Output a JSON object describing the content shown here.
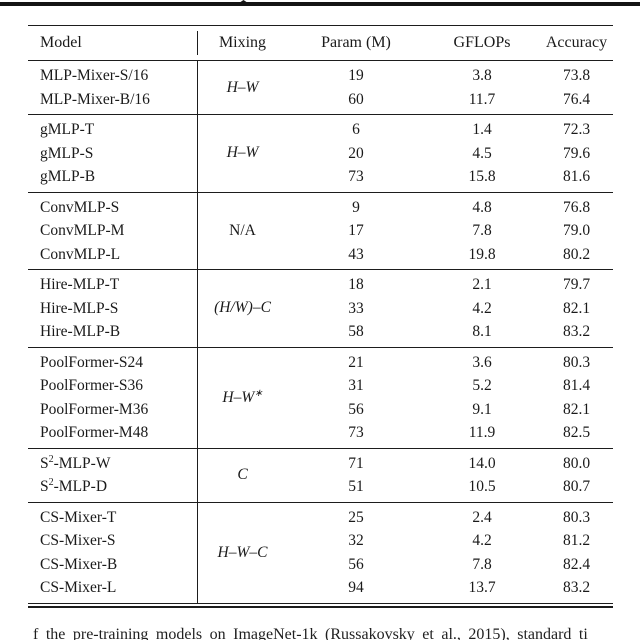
{
  "table": {
    "headers": [
      "Model",
      "Mixing",
      "Param (M)",
      "GFLOPs",
      "Accuracy"
    ],
    "groups": [
      {
        "mixing": {
          "parts": [
            {
              "t": "H–W"
            }
          ],
          "roman": false
        },
        "rows": [
          {
            "model": [
              {
                "t": "MLP-Mixer-S/16"
              }
            ],
            "param": "19",
            "gflops": "3.8",
            "acc": "73.8"
          },
          {
            "model": [
              {
                "t": "MLP-Mixer-B/16"
              }
            ],
            "param": "60",
            "gflops": "11.7",
            "acc": "76.4"
          }
        ]
      },
      {
        "mixing": {
          "parts": [
            {
              "t": "H–W"
            }
          ],
          "roman": false
        },
        "rows": [
          {
            "model": [
              {
                "t": "gMLP-T"
              }
            ],
            "param": "6",
            "gflops": "1.4",
            "acc": "72.3"
          },
          {
            "model": [
              {
                "t": "gMLP-S"
              }
            ],
            "param": "20",
            "gflops": "4.5",
            "acc": "79.6"
          },
          {
            "model": [
              {
                "t": "gMLP-B"
              }
            ],
            "param": "73",
            "gflops": "15.8",
            "acc": "81.6"
          }
        ]
      },
      {
        "mixing": {
          "parts": [
            {
              "t": "N/A"
            }
          ],
          "roman": true
        },
        "rows": [
          {
            "model": [
              {
                "t": "ConvMLP-S"
              }
            ],
            "param": "9",
            "gflops": "4.8",
            "acc": "76.8"
          },
          {
            "model": [
              {
                "t": "ConvMLP-M"
              }
            ],
            "param": "17",
            "gflops": "7.8",
            "acc": "79.0"
          },
          {
            "model": [
              {
                "t": "ConvMLP-L"
              }
            ],
            "param": "43",
            "gflops": "19.8",
            "acc": "80.2"
          }
        ]
      },
      {
        "mixing": {
          "parts": [
            {
              "t": "(H/W)–C"
            }
          ],
          "roman": false
        },
        "rows": [
          {
            "model": [
              {
                "t": "Hire-MLP-T"
              }
            ],
            "param": "18",
            "gflops": "2.1",
            "acc": "79.7"
          },
          {
            "model": [
              {
                "t": "Hire-MLP-S"
              }
            ],
            "param": "33",
            "gflops": "4.2",
            "acc": "82.1"
          },
          {
            "model": [
              {
                "t": "Hire-MLP-B"
              }
            ],
            "param": "58",
            "gflops": "8.1",
            "acc": "83.2"
          }
        ]
      },
      {
        "mixing": {
          "parts": [
            {
              "t": "H–W"
            },
            {
              "s": "∗"
            }
          ],
          "roman": false
        },
        "rows": [
          {
            "model": [
              {
                "t": "PoolFormer-S24"
              }
            ],
            "param": "21",
            "gflops": "3.6",
            "acc": "80.3"
          },
          {
            "model": [
              {
                "t": "PoolFormer-S36"
              }
            ],
            "param": "31",
            "gflops": "5.2",
            "acc": "81.4"
          },
          {
            "model": [
              {
                "t": "PoolFormer-M36"
              }
            ],
            "param": "56",
            "gflops": "9.1",
            "acc": "82.1"
          },
          {
            "model": [
              {
                "t": "PoolFormer-M48"
              }
            ],
            "param": "73",
            "gflops": "11.9",
            "acc": "82.5"
          }
        ]
      },
      {
        "mixing": {
          "parts": [
            {
              "t": "C"
            }
          ],
          "roman": false
        },
        "rows": [
          {
            "model": [
              {
                "t": "S"
              },
              {
                "s": "2"
              },
              {
                "t": "-MLP-W"
              }
            ],
            "param": "71",
            "gflops": "14.0",
            "acc": "80.0"
          },
          {
            "model": [
              {
                "t": "S"
              },
              {
                "s": "2"
              },
              {
                "t": "-MLP-D"
              }
            ],
            "param": "51",
            "gflops": "10.5",
            "acc": "80.7"
          }
        ]
      },
      {
        "mixing": {
          "parts": [
            {
              "t": "H–W–C"
            }
          ],
          "roman": false
        },
        "rows": [
          {
            "model": [
              {
                "t": "CS-Mixer-T"
              }
            ],
            "param": "25",
            "gflops": "2.4",
            "acc": "80.3"
          },
          {
            "model": [
              {
                "t": "CS-Mixer-S"
              }
            ],
            "param": "32",
            "gflops": "4.2",
            "acc": "81.2"
          },
          {
            "model": [
              {
                "t": "CS-Mixer-B"
              }
            ],
            "param": "56",
            "gflops": "7.8",
            "acc": "82.4"
          },
          {
            "model": [
              {
                "t": "CS-Mixer-L"
              }
            ],
            "param": "94",
            "gflops": "13.7",
            "acc": "83.2"
          }
        ]
      }
    ]
  },
  "caption": {
    "text": "f the pre-training models on ImageNet-1k (Russakovsky et al., 2015), standard ti"
  },
  "colors": {
    "text": "#1a1a1a",
    "rule": "#1d1d1d",
    "background": "#ffffff"
  }
}
